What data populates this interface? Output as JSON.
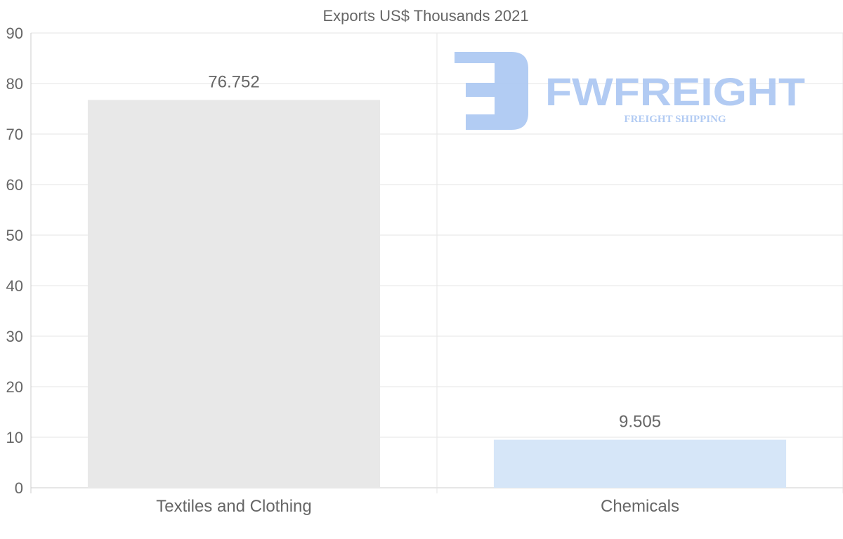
{
  "chart_data": {
    "type": "bar",
    "title": "Exports US$ Thousands 2021",
    "categories": [
      "Textiles and Clothing",
      "Chemicals"
    ],
    "values": [
      76.752,
      9.505
    ],
    "value_labels": [
      "76.752",
      "9.505"
    ],
    "bar_colors": [
      "#e8e8e8",
      "#d6e6f8"
    ],
    "xlabel": "",
    "ylabel": "",
    "ylim": [
      0,
      90
    ],
    "yticks": [
      0,
      10,
      20,
      30,
      40,
      50,
      60,
      70,
      80,
      90
    ],
    "grid": true,
    "legend": "none"
  },
  "watermark": {
    "brand": "FWFREIGHT",
    "tagline": "FREIGHT SHIPPING",
    "color": "#aac6f2"
  }
}
